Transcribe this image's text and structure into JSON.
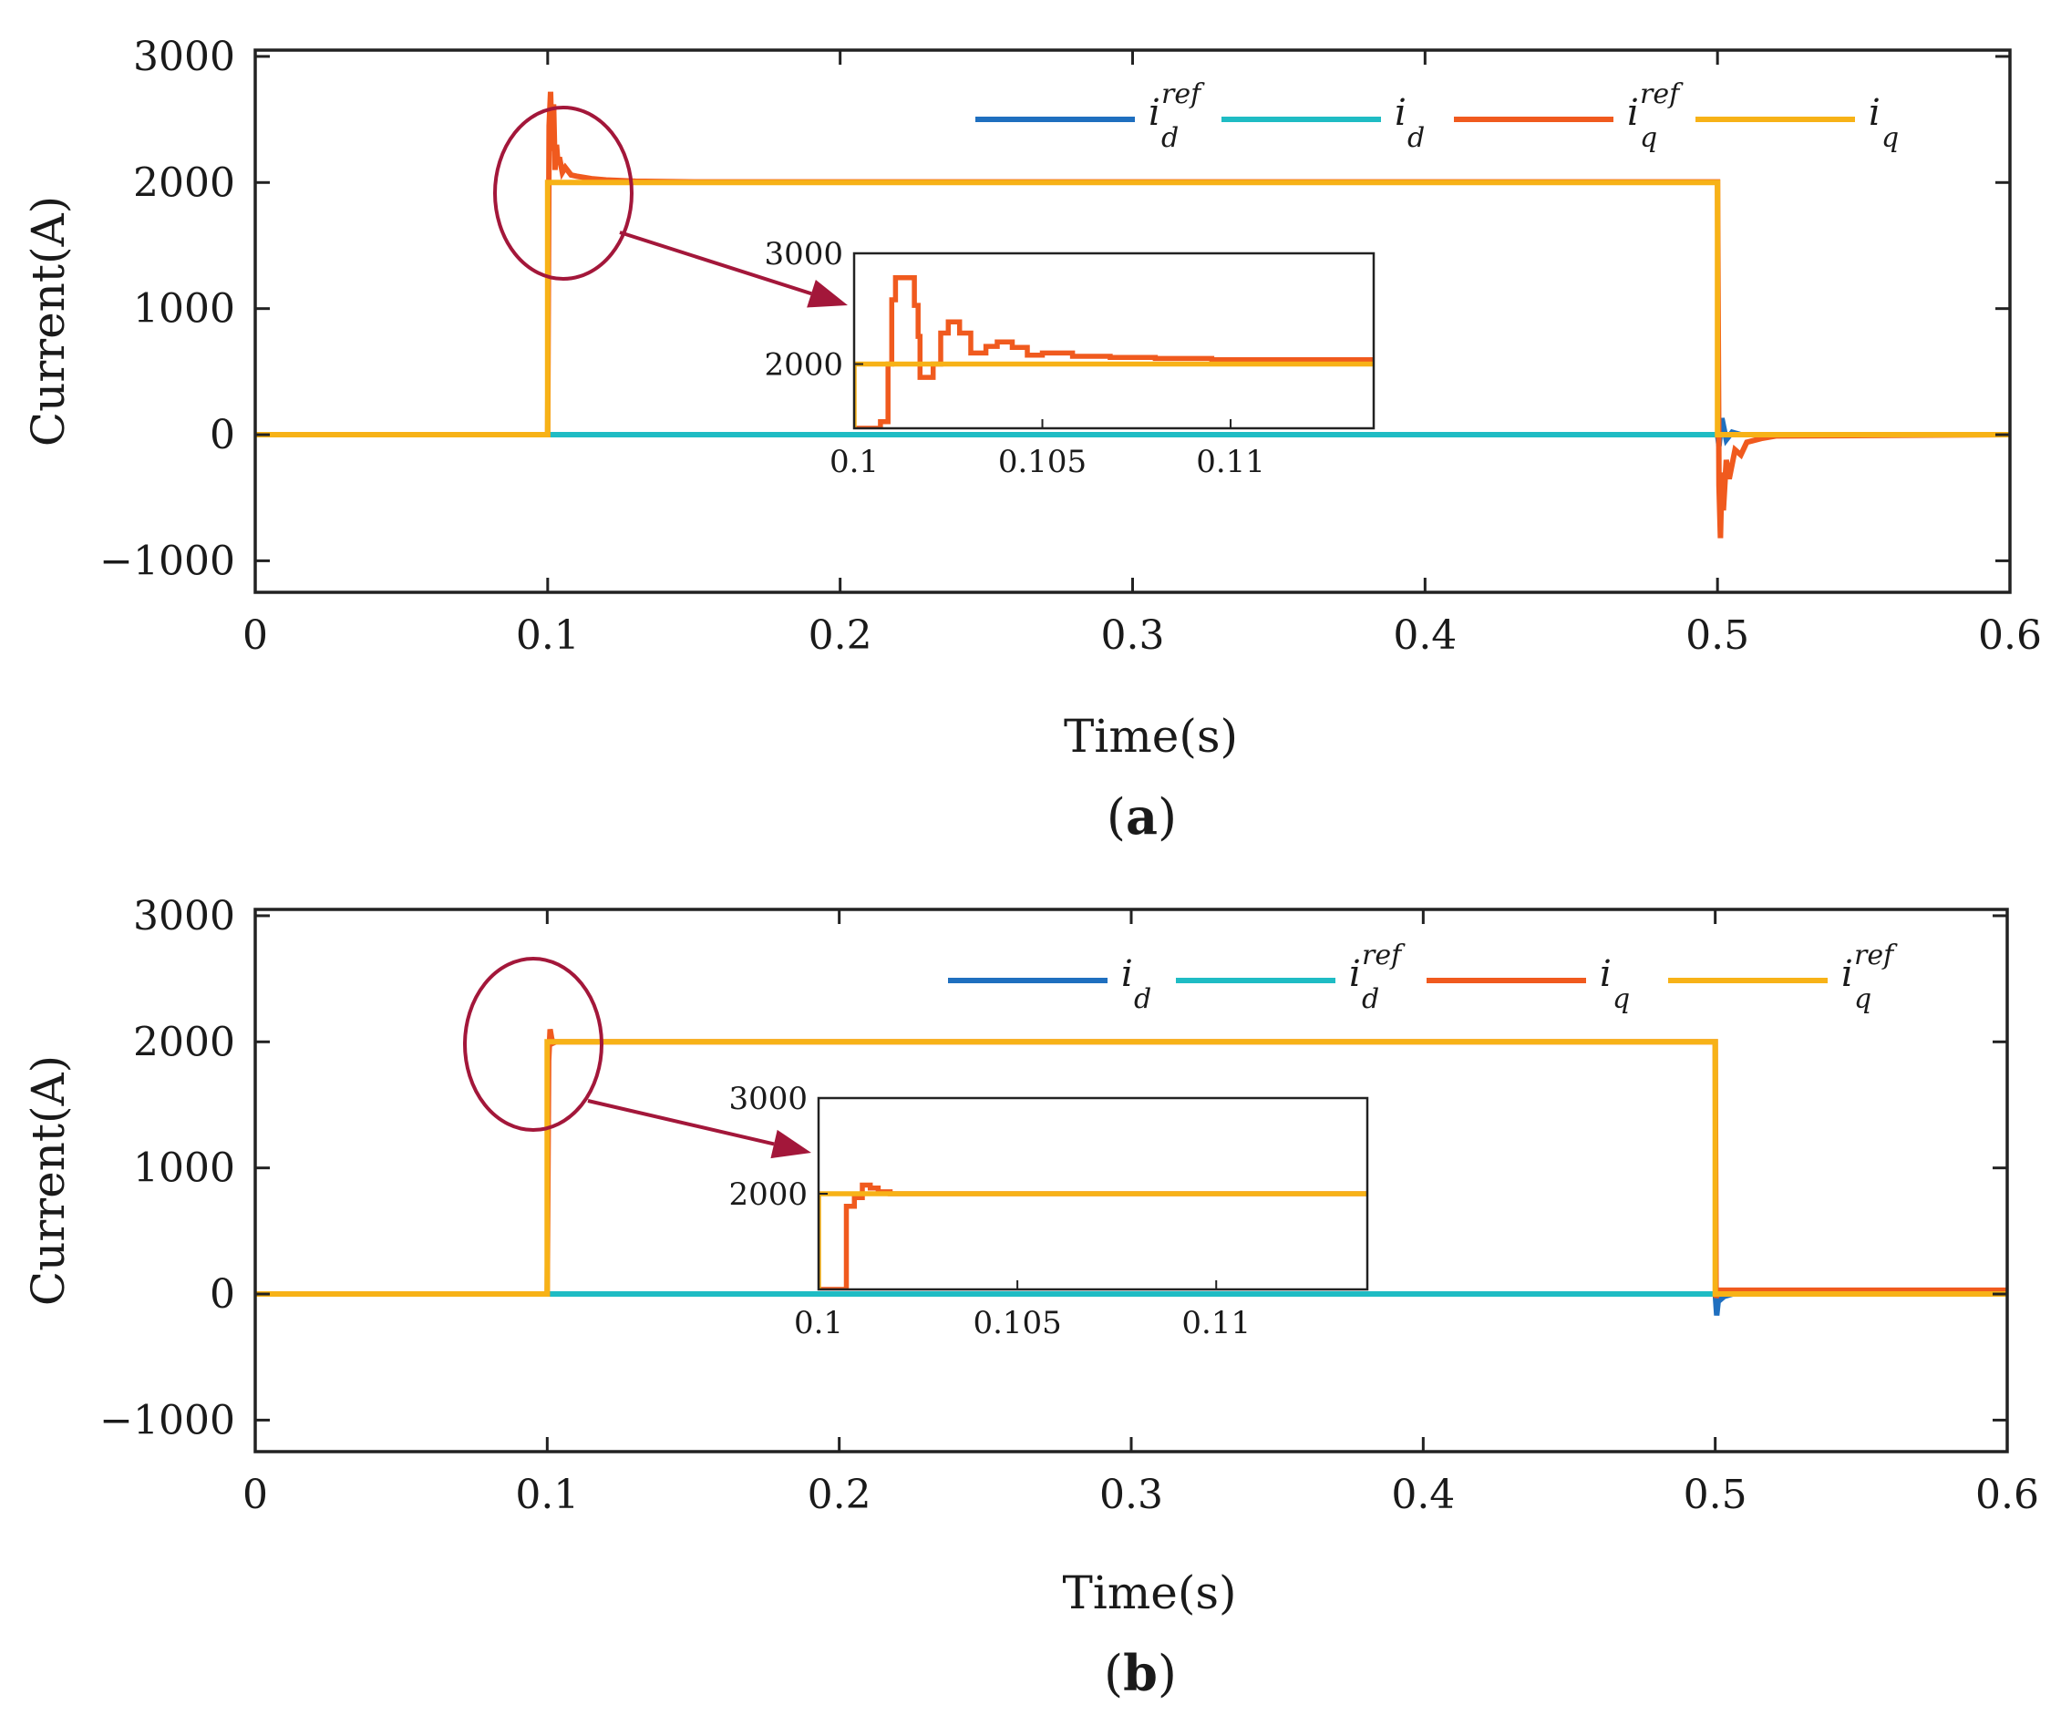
{
  "chart_data": [
    {
      "id": "a",
      "type": "line",
      "panel_label": "a",
      "xlabel": "Time(s)",
      "ylabel": "Current(A)",
      "xlim": [
        0,
        0.6
      ],
      "ylim": [
        -1250,
        3050
      ],
      "xticks": [
        0,
        0.1,
        0.2,
        0.3,
        0.4,
        0.5,
        0.6
      ],
      "xtick_labels": [
        "0",
        "0.1",
        "0.2",
        "0.3",
        "0.4",
        "0.5",
        "0.6"
      ],
      "yticks": [
        -1000,
        0,
        1000,
        2000,
        3000
      ],
      "ytick_labels": [
        "−1000",
        "0",
        "1000",
        "2000",
        "3000"
      ],
      "legend": {
        "placement": "top-right",
        "entries": [
          {
            "series": "id_ref",
            "main": "i",
            "sub": "d",
            "sup": "ref",
            "color": "#1f6fbf"
          },
          {
            "series": "id",
            "main": "i",
            "sub": "d",
            "sup": "",
            "color": "#1fbcc4"
          },
          {
            "series": "iq_ref",
            "main": "i",
            "sub": "q",
            "sup": "ref",
            "color": "#f05a1e"
          },
          {
            "series": "iq",
            "main": "i",
            "sub": "q",
            "sup": "",
            "color": "#f7b217"
          }
        ]
      },
      "series": [
        {
          "name": "id_ref",
          "color": "#1f6fbf",
          "points": [
            [
              0,
              0
            ],
            [
              0.5,
              0
            ],
            [
              0.5005,
              -90
            ],
            [
              0.5015,
              130
            ],
            [
              0.503,
              -40
            ],
            [
              0.505,
              20
            ],
            [
              0.508,
              0
            ],
            [
              0.6,
              0
            ]
          ]
        },
        {
          "name": "id",
          "color": "#1fbcc4",
          "points": [
            [
              0,
              0
            ],
            [
              0.6,
              0
            ]
          ]
        },
        {
          "name": "iq_ref",
          "color": "#f05a1e",
          "points": [
            [
              0,
              0
            ],
            [
              0.1,
              0
            ],
            [
              0.1005,
              2450
            ],
            [
              0.101,
              2720
            ],
            [
              0.1015,
              2250
            ],
            [
              0.102,
              2620
            ],
            [
              0.1025,
              2100
            ],
            [
              0.103,
              2300
            ],
            [
              0.1035,
              2150
            ],
            [
              0.104,
              2200
            ],
            [
              0.105,
              2080
            ],
            [
              0.106,
              2120
            ],
            [
              0.108,
              2060
            ],
            [
              0.11,
              2050
            ],
            [
              0.115,
              2030
            ],
            [
              0.12,
              2020
            ],
            [
              0.13,
              2010
            ],
            [
              0.15,
              2005
            ],
            [
              0.5,
              2005
            ],
            [
              0.5005,
              -400
            ],
            [
              0.501,
              -820
            ],
            [
              0.5015,
              -300
            ],
            [
              0.502,
              -600
            ],
            [
              0.503,
              -200
            ],
            [
              0.504,
              -350
            ],
            [
              0.506,
              -120
            ],
            [
              0.508,
              -160
            ],
            [
              0.51,
              -60
            ],
            [
              0.515,
              -30
            ],
            [
              0.52,
              -10
            ],
            [
              0.6,
              0
            ]
          ]
        },
        {
          "name": "iq",
          "color": "#f7b217",
          "points": [
            [
              0,
              0
            ],
            [
              0.1,
              0
            ],
            [
              0.1,
              2000
            ],
            [
              0.5,
              2000
            ],
            [
              0.5,
              0
            ],
            [
              0.6,
              0
            ]
          ]
        }
      ],
      "annotation": {
        "type": "ellipse-arrow",
        "target_x": 0.1045,
        "target_y": 2200
      },
      "inset": {
        "xlim": [
          0.1,
          0.1138
        ],
        "ylim": [
          1420,
          3000
        ],
        "xticks": [
          0.1,
          0.105,
          0.11
        ],
        "xtick_labels": [
          "0.1",
          "0.105",
          "0.11"
        ],
        "yticks": [
          2000,
          3000
        ],
        "ytick_labels": [
          "2000",
          "3000"
        ],
        "series": [
          {
            "name": "iq_ref",
            "color": "#f05a1e",
            "points": [
              [
                0.1,
                1420
              ],
              [
                0.1007,
                1420
              ],
              [
                0.1007,
                1480
              ],
              [
                0.1009,
                1480
              ],
              [
                0.1009,
                2000
              ],
              [
                0.101,
                2000
              ],
              [
                0.101,
                2580
              ],
              [
                0.1011,
                2580
              ],
              [
                0.1011,
                2780
              ],
              [
                0.1016,
                2780
              ],
              [
                0.1016,
                2530
              ],
              [
                0.1017,
                2530
              ],
              [
                0.1017,
                2250
              ],
              [
                0.10175,
                2250
              ],
              [
                0.10175,
                1880
              ],
              [
                0.1021,
                1880
              ],
              [
                0.1021,
                2000
              ],
              [
                0.1023,
                2000
              ],
              [
                0.1023,
                2280
              ],
              [
                0.1025,
                2280
              ],
              [
                0.1025,
                2380
              ],
              [
                0.1028,
                2380
              ],
              [
                0.1028,
                2280
              ],
              [
                0.1031,
                2280
              ],
              [
                0.1031,
                2100
              ],
              [
                0.1035,
                2100
              ],
              [
                0.1035,
                2160
              ],
              [
                0.1038,
                2160
              ],
              [
                0.1038,
                2200
              ],
              [
                0.1042,
                2200
              ],
              [
                0.1042,
                2150
              ],
              [
                0.1046,
                2150
              ],
              [
                0.1046,
                2080
              ],
              [
                0.105,
                2080
              ],
              [
                0.105,
                2100
              ],
              [
                0.1058,
                2100
              ],
              [
                0.1058,
                2070
              ],
              [
                0.1068,
                2070
              ],
              [
                0.1068,
                2060
              ],
              [
                0.108,
                2060
              ],
              [
                0.108,
                2050
              ],
              [
                0.1095,
                2050
              ],
              [
                0.1095,
                2040
              ],
              [
                0.1138,
                2040
              ]
            ]
          },
          {
            "name": "iq",
            "color": "#f7b217",
            "points": [
              [
                0.1,
                1420
              ],
              [
                0.1,
                2000
              ],
              [
                0.1138,
                2000
              ]
            ]
          }
        ]
      }
    },
    {
      "id": "b",
      "type": "line",
      "panel_label": "b",
      "xlabel": "Time(s)",
      "ylabel": "Current(A)",
      "xlim": [
        0,
        0.6
      ],
      "ylim": [
        -1250,
        3050
      ],
      "xticks": [
        0,
        0.1,
        0.2,
        0.3,
        0.4,
        0.5,
        0.6
      ],
      "xtick_labels": [
        "0",
        "0.1",
        "0.2",
        "0.3",
        "0.4",
        "0.5",
        "0.6"
      ],
      "yticks": [
        -1000,
        0,
        1000,
        2000,
        3000
      ],
      "ytick_labels": [
        "−1000",
        "0",
        "1000",
        "2000",
        "3000"
      ],
      "legend": {
        "placement": "top-right",
        "entries": [
          {
            "series": "id",
            "main": "i",
            "sub": "d",
            "sup": "",
            "color": "#1f6fbf"
          },
          {
            "series": "id_ref",
            "main": "i",
            "sub": "d",
            "sup": "ref",
            "color": "#1fbcc4"
          },
          {
            "series": "iq",
            "main": "i",
            "sub": "q",
            "sup": "",
            "color": "#f05a1e"
          },
          {
            "series": "iq_ref",
            "main": "i",
            "sub": "q",
            "sup": "ref",
            "color": "#f7b217"
          }
        ]
      },
      "series": [
        {
          "name": "id",
          "color": "#1f6fbf",
          "points": [
            [
              0,
              0
            ],
            [
              0.5,
              0
            ],
            [
              0.5005,
              -170
            ],
            [
              0.501,
              -60
            ],
            [
              0.503,
              -20
            ],
            [
              0.506,
              0
            ],
            [
              0.6,
              0
            ]
          ]
        },
        {
          "name": "id_ref",
          "color": "#1fbcc4",
          "points": [
            [
              0,
              0
            ],
            [
              0.6,
              0
            ]
          ]
        },
        {
          "name": "iq",
          "color": "#f05a1e",
          "points": [
            [
              0,
              0
            ],
            [
              0.1,
              0
            ],
            [
              0.1005,
              1850
            ],
            [
              0.101,
              2100
            ],
            [
              0.1015,
              2030
            ],
            [
              0.102,
              1990
            ],
            [
              0.103,
              2000
            ],
            [
              0.5,
              2000
            ],
            [
              0.5003,
              -30
            ],
            [
              0.501,
              30
            ],
            [
              0.6,
              30
            ]
          ]
        },
        {
          "name": "iq_ref",
          "color": "#f7b217",
          "points": [
            [
              0,
              0
            ],
            [
              0.1,
              0
            ],
            [
              0.1,
              2000
            ],
            [
              0.5,
              2000
            ],
            [
              0.5,
              0
            ],
            [
              0.6,
              0
            ]
          ]
        }
      ],
      "annotation": {
        "type": "ellipse-arrow",
        "target_x": 0.1035,
        "target_y": 2000
      },
      "inset": {
        "xlim": [
          0.1,
          0.1138
        ],
        "ylim": [
          1000,
          3000
        ],
        "xticks": [
          0.1,
          0.105,
          0.11
        ],
        "xtick_labels": [
          "0.1",
          "0.105",
          "0.11"
        ],
        "yticks": [
          2000,
          3000
        ],
        "ytick_labels": [
          "2000",
          "3000"
        ],
        "series": [
          {
            "name": "iq",
            "color": "#f05a1e",
            "points": [
              [
                0.1,
                1000
              ],
              [
                0.1007,
                1000
              ],
              [
                0.1007,
                1870
              ],
              [
                0.1009,
                1870
              ],
              [
                0.1009,
                1960
              ],
              [
                0.1011,
                1960
              ],
              [
                0.1011,
                2090
              ],
              [
                0.1013,
                2090
              ],
              [
                0.1013,
                2060
              ],
              [
                0.1015,
                2060
              ],
              [
                0.1015,
                2020
              ],
              [
                0.1018,
                2020
              ],
              [
                0.1018,
                2000
              ],
              [
                0.1138,
                2000
              ]
            ]
          },
          {
            "name": "iq_ref",
            "color": "#f7b217",
            "points": [
              [
                0.1,
                1000
              ],
              [
                0.1,
                2000
              ],
              [
                0.1138,
                2000
              ]
            ]
          }
        ]
      }
    }
  ]
}
